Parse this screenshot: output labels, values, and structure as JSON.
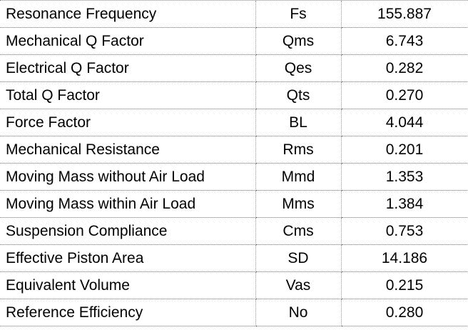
{
  "parameters": [
    {
      "name": "Resonance Frequency",
      "symbol": "Fs",
      "value": "155.887"
    },
    {
      "name": "Mechanical Q Factor",
      "symbol": "Qms",
      "value": "6.743"
    },
    {
      "name": "Electrical Q Factor",
      "symbol": "Qes",
      "value": "0.282"
    },
    {
      "name": "Total Q Factor",
      "symbol": "Qts",
      "value": "0.270"
    },
    {
      "name": "Force Factor",
      "symbol": "BL",
      "value": "4.044"
    },
    {
      "name": "Mechanical Resistance",
      "symbol": "Rms",
      "value": "0.201"
    },
    {
      "name": "Moving Mass without Air Load",
      "symbol": "Mmd",
      "value": "1.353"
    },
    {
      "name": "Moving Mass within Air Load",
      "symbol": "Mms",
      "value": "1.384"
    },
    {
      "name": "Suspension Compliance",
      "symbol": "Cms",
      "value": "0.753"
    },
    {
      "name": "Effective Piston Area",
      "symbol": "SD",
      "value": "14.186"
    },
    {
      "name": "Equivalent Volume",
      "symbol": "Vas",
      "value": "0.215"
    },
    {
      "name": "Reference Efficiency",
      "symbol": "No",
      "value": "0.280"
    }
  ]
}
